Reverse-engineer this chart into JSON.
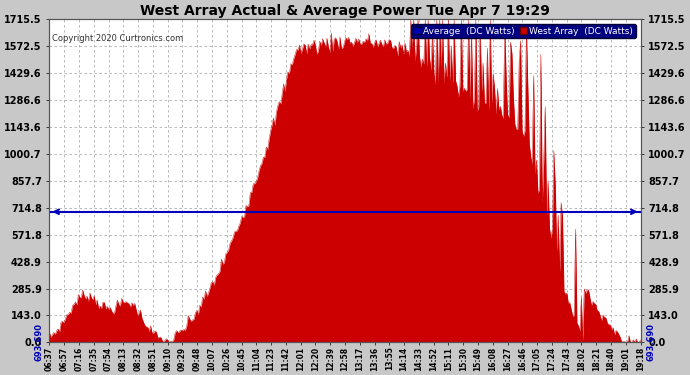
{
  "title": "West Array Actual & Average Power Tue Apr 7 19:29",
  "copyright": "Copyright 2020 Curtronics.com",
  "average_value": 693.69,
  "average_label": "693.690",
  "legend_avg": "Average  (DC Watts)",
  "legend_west": "West Array  (DC Watts)",
  "yticks": [
    0.0,
    143.0,
    285.9,
    428.9,
    571.8,
    714.8,
    857.7,
    1000.7,
    1143.6,
    1286.6,
    1429.6,
    1572.5,
    1715.5
  ],
  "ymax": 1715.5,
  "bg_color": "#c8c8c8",
  "plot_bg_color": "#ffffff",
  "fill_color": "#cc0000",
  "avg_line_color": "#0000bb",
  "title_color": "#000000",
  "xtick_labels": [
    "06:37",
    "06:57",
    "07:16",
    "07:35",
    "07:54",
    "08:13",
    "08:32",
    "08:51",
    "09:10",
    "09:29",
    "09:48",
    "10:07",
    "10:26",
    "10:45",
    "11:04",
    "11:23",
    "11:42",
    "12:01",
    "12:20",
    "12:39",
    "12:58",
    "13:17",
    "13:36",
    "13:55",
    "14:14",
    "14:33",
    "14:52",
    "15:11",
    "15:30",
    "15:49",
    "16:08",
    "16:27",
    "16:46",
    "17:05",
    "17:24",
    "17:43",
    "18:02",
    "18:21",
    "18:40",
    "19:01",
    "19:18"
  ],
  "num_points": 410
}
